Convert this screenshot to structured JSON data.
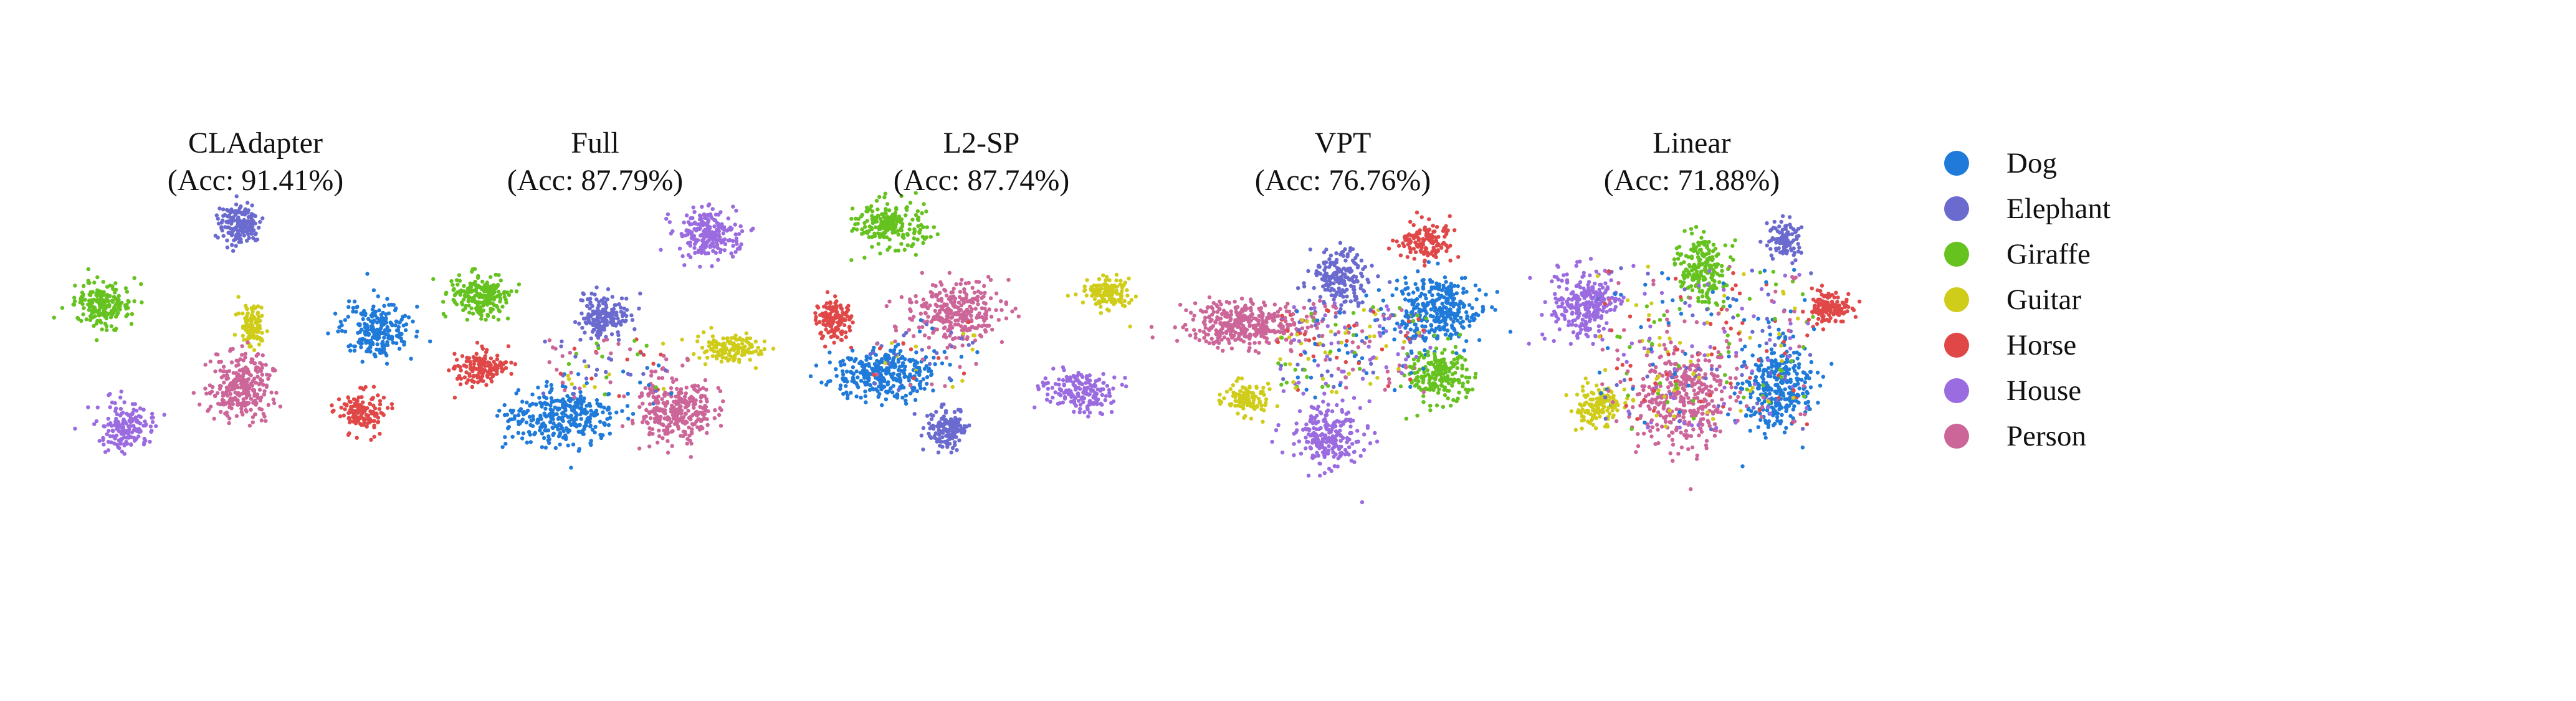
{
  "chart_data": {
    "type": "scatter",
    "description_free": true,
    "classes": [
      {
        "name": "Dog",
        "color": "#1f7ad9"
      },
      {
        "name": "Elephant",
        "color": "#6b6bcf"
      },
      {
        "name": "Giraffe",
        "color": "#66c21f"
      },
      {
        "name": "Guitar",
        "color": "#cfcc1a"
      },
      {
        "name": "Horse",
        "color": "#e04848"
      },
      {
        "name": "House",
        "color": "#9b6be0"
      },
      {
        "name": "Person",
        "color": "#cc6699"
      }
    ],
    "legend_position": "right",
    "grid": false,
    "panels": [
      {
        "title": "CLAdapter",
        "subtitle": "(Acc: 91.41%)"
      },
      {
        "title": "Full",
        "subtitle": "(Acc: 87.79%)"
      },
      {
        "title": "L2-SP",
        "subtitle": "(Acc: 87.74%)"
      },
      {
        "title": "VPT",
        "subtitle": "(Acc: 76.76%)"
      },
      {
        "title": "Linear",
        "subtitle": "(Acc: 71.88%)"
      }
    ]
  }
}
